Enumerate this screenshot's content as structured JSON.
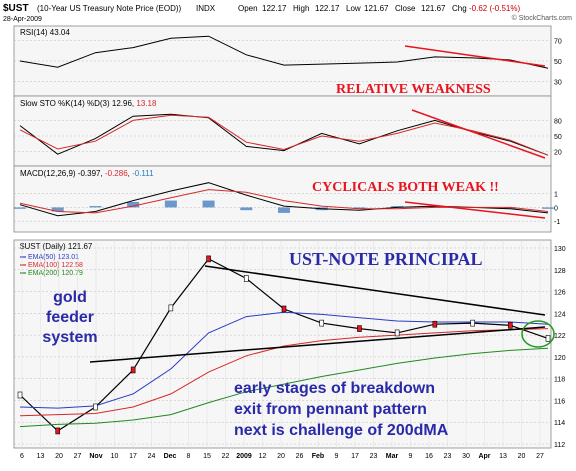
{
  "header": {
    "symbol": "$UST",
    "name": "(10-Year US Treasury Note Price (EOD))",
    "exchange": "INDX",
    "date": "28-Apr-2009",
    "open_label": "Open",
    "open": "122.17",
    "high_label": "High",
    "high": "122.17",
    "low_label": "Low",
    "low": "121.67",
    "close_label": "Close",
    "close": "121.67",
    "chg_label": "Chg",
    "chg": "-0.62 (-0.51%)",
    "watermark": "© StockCharts.com"
  },
  "rsi_panel": {
    "label": "RSI(14)",
    "value": "43.04",
    "ticks": [
      "70",
      "50",
      "30"
    ]
  },
  "sto_panel": {
    "label": "Slow STO %K(14) %D(3)",
    "k_value": "12.96",
    "d_value": "13.18",
    "ticks": [
      "80",
      "50",
      "20"
    ]
  },
  "macd_panel": {
    "label": "MACD(12,26,9)",
    "macd_value": "-0.397",
    "signal_value": "-0.286",
    "hist_value": "-0.111",
    "ticks": [
      "1",
      "0",
      "-1"
    ]
  },
  "price_panel": {
    "label": "$UST (Daily)",
    "value": "121.67",
    "ema50_label": "EMA(50)",
    "ema50_value": "123.01",
    "ema100_label": "EMA(100)",
    "ema100_value": "122.58",
    "ema200_label": "EMA(200)",
    "ema200_value": "120.79",
    "ticks": [
      "130",
      "128",
      "126",
      "124",
      "122",
      "120",
      "118",
      "116",
      "114",
      "112"
    ]
  },
  "x_axis": {
    "labels": [
      "6",
      "13",
      "20",
      "27",
      "Nov",
      "10",
      "17",
      "24",
      "Dec",
      "8",
      "15",
      "22",
      "2009",
      "12",
      "20",
      "26",
      "Feb",
      "9",
      "17",
      "23",
      "Mar",
      "9",
      "16",
      "23",
      "30",
      "Apr",
      "13",
      "20",
      "27"
    ]
  },
  "annotations": {
    "relative_weakness": "RELATIVE WEAKNESS",
    "cyclicals": "CYCLICALS BOTH WEAK !!",
    "title": "UST-NOTE PRINCIPAL",
    "gold_line1": "gold",
    "gold_line2": "feeder",
    "gold_line3": "system",
    "note_line1": "early stages of breakdown",
    "note_line2": "exit from pennant pattern",
    "note_line3": "next is challenge of 200dMA"
  },
  "colors": {
    "annotation_red": "#e8141e",
    "annotation_blue": "#2a2aa8",
    "ema50": "#2b3bc4",
    "ema100": "#d6282a",
    "ema200": "#1f8a1f",
    "macd_hist": "#4a7fc0",
    "panel_fill": "#f6f6f6"
  },
  "chart_data": {
    "type": "line",
    "x": [
      "2008-10-06",
      "2008-10-20",
      "2008-11-03",
      "2008-11-17",
      "2008-12-01",
      "2008-12-15",
      "2009-01-02",
      "2009-01-15",
      "2009-02-02",
      "2009-02-17",
      "2009-03-02",
      "2009-03-16",
      "2009-03-30",
      "2009-04-13",
      "2009-04-28"
    ],
    "series": [
      {
        "name": "$UST (Daily)",
        "values": [
          116.5,
          113.2,
          115.4,
          118.8,
          124.5,
          129.0,
          127.2,
          124.4,
          123.1,
          122.6,
          122.2,
          123.0,
          123.1,
          122.9,
          121.7
        ]
      },
      {
        "name": "EMA(50)",
        "values": [
          115.4,
          115.3,
          115.5,
          116.6,
          118.9,
          122.2,
          123.7,
          124.1,
          123.9,
          123.6,
          123.3,
          123.2,
          123.2,
          123.2,
          123.0
        ]
      },
      {
        "name": "EMA(100)",
        "values": [
          114.6,
          114.7,
          114.8,
          115.4,
          116.6,
          118.6,
          120.1,
          121.0,
          121.5,
          121.8,
          122.0,
          122.2,
          122.4,
          122.5,
          122.6
        ]
      },
      {
        "name": "EMA(200)",
        "values": [
          113.6,
          113.8,
          113.9,
          114.2,
          114.7,
          115.8,
          116.8,
          117.5,
          118.2,
          118.8,
          119.4,
          119.9,
          120.3,
          120.6,
          120.8
        ]
      }
    ],
    "rsi": [
      50,
      44,
      58,
      63,
      72,
      74,
      56,
      46,
      47,
      48,
      49,
      54,
      53,
      51,
      43
    ],
    "sto_k": [
      70,
      15,
      45,
      88,
      92,
      85,
      30,
      22,
      55,
      35,
      60,
      80,
      58,
      40,
      13
    ],
    "sto_d": [
      62,
      25,
      40,
      80,
      90,
      86,
      38,
      24,
      50,
      40,
      55,
      75,
      60,
      42,
      13
    ],
    "macd": [
      0.2,
      -0.6,
      -0.3,
      0.5,
      1.2,
      1.8,
      0.9,
      0.1,
      -0.1,
      -0.2,
      0.0,
      0.1,
      0.0,
      -0.1,
      -0.4
    ],
    "macd_signal": [
      0.3,
      -0.3,
      -0.4,
      0.1,
      0.7,
      1.3,
      1.1,
      0.5,
      0.1,
      -0.1,
      -0.1,
      0.0,
      0.0,
      0.0,
      -0.3
    ],
    "ylim": [
      112,
      130
    ],
    "y_scale": "linear",
    "grid": true
  }
}
